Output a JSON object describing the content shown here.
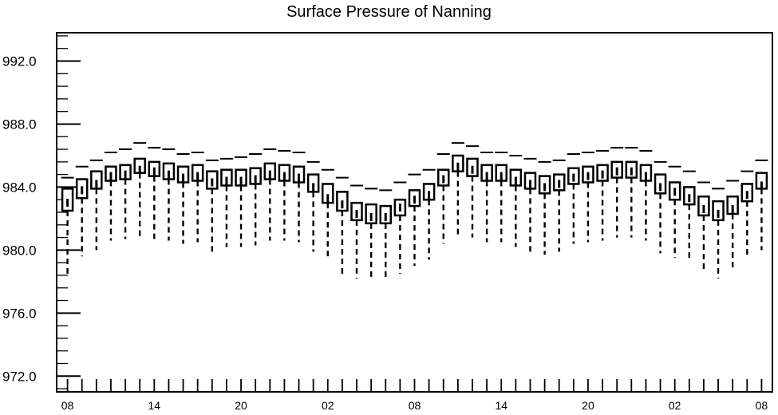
{
  "chart_data": {
    "type": "box",
    "title": "Surface Pressure of Nanning",
    "xlabel": "",
    "ylabel": "",
    "ylim": [
      971.0,
      993.8
    ],
    "y_ticks": [
      972.0,
      976.0,
      980.0,
      984.0,
      988.0,
      992.0
    ],
    "y_tick_labels": [
      "972.0",
      "976.0",
      "980.0",
      "984.0",
      "988.0",
      "992.0"
    ],
    "y_minor_step": 0.8,
    "x_ticks": [
      0,
      6,
      12,
      18,
      24,
      30,
      36,
      42,
      48
    ],
    "x_tick_labels": [
      "08",
      "14",
      "20",
      "02",
      "08",
      "14",
      "20",
      "02",
      "08"
    ],
    "x_lim": [
      -0.75,
      48.75
    ],
    "grid": false,
    "legend": "none",
    "series": [
      {
        "x": [
          0,
          1,
          2,
          3,
          4,
          5,
          6,
          7,
          8,
          9,
          10,
          11,
          12,
          13,
          14,
          15,
          16,
          17,
          18,
          19,
          20,
          21,
          22,
          23,
          24,
          25,
          26,
          27,
          28,
          29,
          30,
          31,
          32,
          33,
          34,
          35,
          36,
          37,
          38,
          39,
          40,
          41,
          42,
          43,
          44,
          45,
          46,
          47,
          48
        ],
        "whisker_high": [
          984.6,
          985.3,
          985.7,
          986.2,
          986.4,
          986.8,
          986.5,
          986.4,
          986.1,
          986.2,
          985.7,
          985.8,
          985.9,
          986.1,
          986.4,
          986.3,
          986.2,
          985.6,
          985.1,
          984.6,
          984.1,
          983.9,
          983.8,
          984.3,
          984.8,
          985.1,
          986.1,
          986.8,
          986.6,
          986.2,
          986.2,
          986.0,
          985.8,
          985.6,
          985.7,
          986.1,
          986.2,
          986.3,
          986.5,
          986.5,
          986.3,
          985.6,
          985.3,
          985.0,
          984.3,
          983.9,
          984.4,
          985.0,
          985.7
        ],
        "q3": [
          983.9,
          984.5,
          985.0,
          985.3,
          985.4,
          985.8,
          985.6,
          985.5,
          985.3,
          985.4,
          985.0,
          985.1,
          985.1,
          985.2,
          985.5,
          985.4,
          985.3,
          984.8,
          984.2,
          983.7,
          983.0,
          982.9,
          982.8,
          983.2,
          983.8,
          984.2,
          985.1,
          986.0,
          985.8,
          985.4,
          985.4,
          985.1,
          984.9,
          984.7,
          984.8,
          985.2,
          985.3,
          985.4,
          985.6,
          985.6,
          985.4,
          984.8,
          984.3,
          984.0,
          983.4,
          983.1,
          983.4,
          984.2,
          984.9
        ],
        "median": [
          983.0,
          983.8,
          984.2,
          984.7,
          984.8,
          985.1,
          985.0,
          984.8,
          984.6,
          984.7,
          984.3,
          984.4,
          984.4,
          984.5,
          984.8,
          984.7,
          984.6,
          984.0,
          983.3,
          982.9,
          982.3,
          982.1,
          982.1,
          982.7,
          983.2,
          983.5,
          984.5,
          985.3,
          985.1,
          984.7,
          984.7,
          984.4,
          984.2,
          984.0,
          984.2,
          984.6,
          984.7,
          984.8,
          985.0,
          985.0,
          984.7,
          984.0,
          983.7,
          983.3,
          982.6,
          982.3,
          982.6,
          983.5,
          984.1
        ],
        "q1": [
          982.5,
          983.3,
          983.9,
          984.4,
          984.5,
          984.9,
          984.7,
          984.5,
          984.3,
          984.4,
          983.9,
          984.1,
          984.1,
          984.2,
          984.5,
          984.4,
          984.3,
          983.7,
          983.0,
          982.5,
          981.9,
          981.7,
          981.7,
          982.2,
          982.8,
          983.2,
          984.1,
          985.0,
          984.7,
          984.4,
          984.4,
          984.1,
          983.9,
          983.6,
          983.8,
          984.2,
          984.3,
          984.4,
          984.6,
          984.6,
          984.4,
          983.6,
          983.2,
          982.9,
          982.2,
          981.9,
          982.3,
          983.1,
          983.9
        ],
        "whisker_low": [
          978.5,
          979.6,
          980.0,
          980.6,
          980.7,
          980.9,
          980.7,
          980.6,
          980.4,
          980.5,
          979.9,
          980.2,
          980.2,
          980.3,
          980.6,
          980.6,
          980.5,
          979.9,
          979.4,
          978.5,
          978.2,
          978.1,
          978.1,
          978.5,
          979.0,
          979.4,
          980.4,
          981.0,
          980.8,
          980.5,
          980.5,
          980.2,
          979.8,
          979.7,
          979.9,
          980.4,
          980.5,
          980.6,
          980.8,
          980.8,
          980.6,
          979.8,
          979.5,
          979.4,
          978.6,
          978.2,
          978.9,
          979.5,
          980.0
        ]
      }
    ]
  }
}
